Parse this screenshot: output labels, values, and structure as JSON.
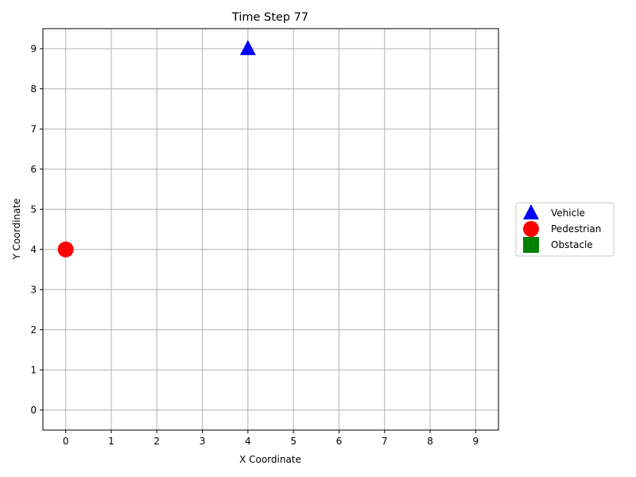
{
  "chart_data": {
    "type": "scatter",
    "title": "Time Step 77",
    "xlabel": "X Coordinate",
    "ylabel": "Y Coordinate",
    "xlim": [
      -0.5,
      9.5
    ],
    "ylim": [
      -0.5,
      9.5
    ],
    "xticks": [
      "0",
      "1",
      "2",
      "3",
      "4",
      "5",
      "6",
      "7",
      "8",
      "9"
    ],
    "yticks": [
      "0",
      "1",
      "2",
      "3",
      "4",
      "5",
      "6",
      "7",
      "8",
      "9"
    ],
    "grid": true,
    "legend_position": "center-right outside",
    "series": [
      {
        "name": "Vehicle",
        "marker": "triangle",
        "color": "#0000ff",
        "points": [
          [
            4,
            9
          ]
        ]
      },
      {
        "name": "Pedestrian",
        "marker": "circle",
        "color": "#ff0000",
        "points": [
          [
            0,
            4
          ]
        ]
      },
      {
        "name": "Obstacle",
        "marker": "square",
        "color": "#008000",
        "points": []
      }
    ]
  }
}
